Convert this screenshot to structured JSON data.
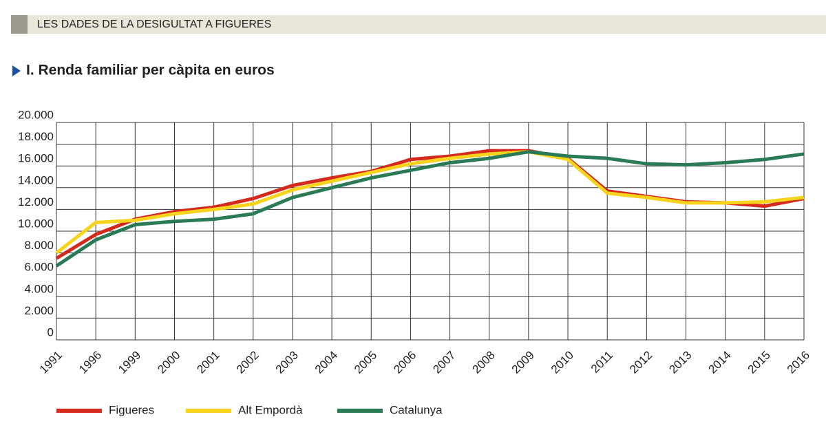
{
  "header": "LES DADES DE LA DESIGULTAT A FIGUERES",
  "chart_data": {
    "type": "line",
    "title": "I. Renda familiar per càpita en euros",
    "categories": [
      "1991",
      "1996",
      "1999",
      "2000",
      "2001",
      "2002",
      "2003",
      "2004",
      "2005",
      "2006",
      "2007",
      "2008",
      "2009",
      "2010",
      "2011",
      "2012",
      "2013",
      "2014",
      "2015",
      "2016"
    ],
    "series": [
      {
        "name": "Figueres",
        "color": "#d42a1e",
        "values": [
          7500,
          9700,
          11100,
          11800,
          12200,
          13000,
          14200,
          14900,
          15500,
          16600,
          16900,
          17400,
          17400,
          16700,
          13700,
          13200,
          12700,
          12600,
          12300,
          13000
        ]
      },
      {
        "name": "Alt Empordà",
        "color": "#f7d31c",
        "values": [
          8000,
          10800,
          11000,
          11600,
          12000,
          12500,
          13800,
          14600,
          15400,
          16200,
          16700,
          17100,
          17300,
          16600,
          13500,
          13100,
          12600,
          12600,
          12700,
          13100
        ]
      },
      {
        "name": "Catalunya",
        "color": "#2a7a56",
        "values": [
          6800,
          9200,
          10600,
          10900,
          11100,
          11600,
          13100,
          14000,
          14900,
          15600,
          16300,
          16700,
          17300,
          16900,
          16700,
          16200,
          16100,
          16300,
          16600,
          17100
        ]
      }
    ],
    "ylim": [
      0,
      20000
    ],
    "yticks": [
      0,
      {
        "value": 2000,
        "label": "2.000"
      },
      {
        "value": 4000,
        "label": "4.000"
      },
      {
        "value": 6000,
        "label": "6.000"
      },
      {
        "value": 8000,
        "label": "8.000"
      },
      {
        "value": 10000,
        "label": "10.000"
      },
      {
        "value": 12000,
        "label": "12.000"
      },
      {
        "value": 14000,
        "label": "14.000"
      },
      {
        "value": 16000,
        "label": "16.000"
      },
      {
        "value": 18000,
        "label": "18.000"
      },
      {
        "value": 20000,
        "label": "20.000"
      }
    ],
    "grid": true
  }
}
